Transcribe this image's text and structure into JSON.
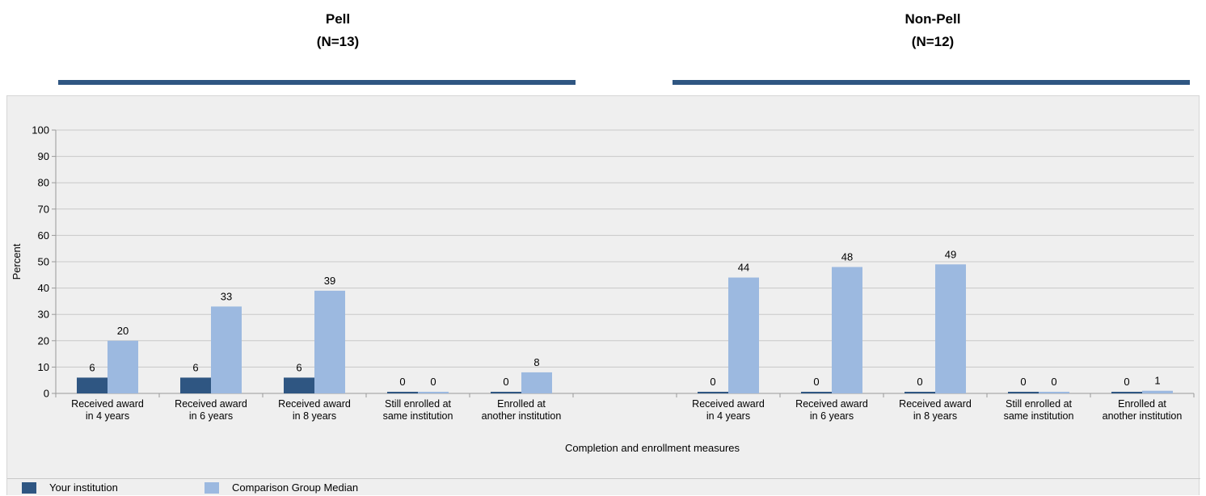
{
  "groups": [
    {
      "name": "Pell",
      "n_label": "(N=13)"
    },
    {
      "name": "Non-Pell",
      "n_label": "(N=12)"
    }
  ],
  "colors": {
    "your_institution": "#2f5682",
    "comparison_median": "#9cb9e0",
    "group_rule": "#2f5682"
  },
  "chart_data": {
    "type": "bar",
    "ylabel": "Percent",
    "xlabel": "Completion and enrollment measures",
    "ylim": [
      0,
      100
    ],
    "yticks": [
      0,
      10,
      20,
      30,
      40,
      50,
      60,
      70,
      80,
      90,
      100
    ],
    "grid": true,
    "legend_position": "bottom-left",
    "groups": [
      {
        "name": "Pell",
        "categories": [
          [
            "Received award",
            "in 4 years"
          ],
          [
            "Received award",
            "in 6 years"
          ],
          [
            "Received award",
            "in 8 years"
          ],
          [
            "Still enrolled at",
            "same institution"
          ],
          [
            "Enrolled at",
            "another institution"
          ]
        ],
        "series": [
          {
            "name": "Your institution",
            "values": [
              6,
              6,
              6,
              0,
              0
            ]
          },
          {
            "name": "Comparison Group Median",
            "values": [
              20,
              33,
              39,
              0,
              8
            ]
          }
        ]
      },
      {
        "name": "Non-Pell",
        "categories": [
          [
            "Received award",
            "in 4 years"
          ],
          [
            "Received award",
            "in 6 years"
          ],
          [
            "Received award",
            "in 8 years"
          ],
          [
            "Still enrolled at",
            "same institution"
          ],
          [
            "Enrolled at",
            "another institution"
          ]
        ],
        "series": [
          {
            "name": "Your institution",
            "values": [
              0,
              0,
              0,
              0,
              0
            ]
          },
          {
            "name": "Comparison Group Median",
            "values": [
              44,
              48,
              49,
              0,
              1
            ]
          }
        ]
      }
    ]
  },
  "legend": [
    {
      "label": "Your institution"
    },
    {
      "label": "Comparison Group Median"
    }
  ]
}
